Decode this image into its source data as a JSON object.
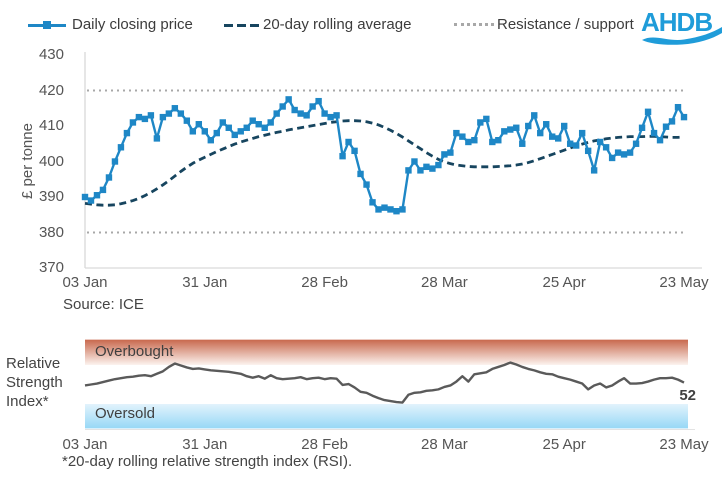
{
  "legend": {
    "items": [
      {
        "label": "Daily closing price",
        "swatch": "line-with-square-marker",
        "color": "#1E87C6"
      },
      {
        "label": "20-day rolling average",
        "swatch": "dashed-line",
        "color": "#17455F"
      },
      {
        "label": "Resistance / support",
        "swatch": "dotted-line",
        "color": "#A8A8A8"
      }
    ]
  },
  "logo": {
    "text": "AHDB",
    "color": "#1F9CD9"
  },
  "source_note": "Source: ICE",
  "footnote": "*20-day rolling relative strength index (RSI).",
  "rsi_labels": {
    "axis_label": "Relative\nStrength\nIndex*",
    "overbought": "Overbought",
    "oversold": "Oversold",
    "end_value": "52"
  },
  "chart_data": [
    {
      "type": "line",
      "title": "Daily closing price vs 20-day rolling average",
      "ylabel": "£ per tonne",
      "ylim": [
        370,
        430
      ],
      "yticks": [
        370,
        380,
        390,
        400,
        410,
        420,
        430
      ],
      "xtick_labels": [
        "03 Jan",
        "31 Jan",
        "28 Feb",
        "28 Mar",
        "25 Apr",
        "23 May"
      ],
      "xtick_indices": [
        0,
        20,
        40,
        60,
        80,
        100
      ],
      "resistance_support_levels": [
        420,
        380
      ],
      "grid": false,
      "legend_position": "top",
      "source": "Source: ICE",
      "series": [
        {
          "name": "Daily closing price",
          "color": "#1E87C6",
          "style": "solid",
          "marker": "square",
          "values": [
            390,
            389,
            390.5,
            392,
            395.5,
            400,
            404,
            408,
            411,
            412.5,
            412,
            413,
            406.5,
            412.5,
            413.5,
            415,
            413.5,
            411.5,
            408.5,
            410.5,
            408.5,
            406,
            408,
            411,
            409.5,
            407.5,
            408.5,
            409.5,
            411.5,
            410.5,
            409.5,
            411,
            413.5,
            415.5,
            417.5,
            414.5,
            413.5,
            413,
            415.5,
            417,
            413.5,
            412.5,
            413,
            401.5,
            405.5,
            403,
            396.5,
            393.5,
            388.5,
            386.5,
            387,
            386.5,
            386,
            386.5,
            397.5,
            400,
            397.5,
            398.5,
            398,
            399,
            402,
            402.5,
            408,
            407,
            405.5,
            406,
            411,
            412,
            405.5,
            406,
            408.5,
            409,
            409.5,
            405,
            410,
            413,
            408,
            410.5,
            407,
            406.5,
            410,
            405,
            404.5,
            408,
            403,
            397.5,
            405.5,
            404,
            401,
            402.5,
            402,
            402.5,
            405,
            409.5,
            414,
            408,
            406,
            409.8,
            411.3,
            415.3,
            412.5
          ]
        },
        {
          "name": "20-day rolling average",
          "color": "#17455F",
          "style": "dashed",
          "marker": "none",
          "values": [
            388.2,
            388,
            387.8,
            387.7,
            387.7,
            387.8,
            388.1,
            388.5,
            389,
            389.6,
            390.4,
            391.3,
            392.3,
            393.4,
            394.6,
            395.9,
            397.2,
            398.4,
            399.5,
            400.4,
            401.2,
            402,
            402.8,
            403.5,
            404.2,
            404.9,
            405.5,
            406,
            406.5,
            407,
            407.4,
            407.8,
            408.2,
            408.5,
            408.9,
            409.2,
            409.5,
            409.8,
            410.1,
            410.4,
            410.7,
            411,
            411.2,
            411.4,
            411.5,
            411.5,
            411.4,
            411.2,
            410.8,
            410.3,
            409.6,
            408.8,
            407.9,
            406.9,
            405.8,
            404.7,
            403.6,
            402.5,
            401.5,
            400.6,
            399.9,
            399.4,
            399,
            398.8,
            398.6,
            398.5,
            398.5,
            398.5,
            398.5,
            398.6,
            398.7,
            398.8,
            399,
            399.3,
            399.7,
            400.2,
            400.8,
            401.4,
            402,
            402.6,
            403.2,
            403.8,
            404.4,
            404.9,
            405.4,
            405.8,
            406.1,
            406.4,
            406.6,
            406.8,
            406.9,
            407,
            407,
            407,
            407.1,
            407.1,
            407,
            406.9,
            406.8,
            406.8,
            406.9
          ]
        }
      ]
    },
    {
      "type": "line",
      "title": "Relative Strength Index (20-day rolling RSI)",
      "ylim": [
        5,
        96
      ],
      "xtick_labels": [
        "03 Jan",
        "31 Jan",
        "28 Feb",
        "28 Mar",
        "25 Apr",
        "23 May"
      ],
      "xtick_indices": [
        0,
        20,
        40,
        60,
        80,
        100
      ],
      "bands": [
        {
          "label": "Overbought",
          "range": [
            70,
            96
          ],
          "color_top": "#C8684D",
          "color_bottom": "#FCF3EF"
        },
        {
          "label": "Oversold",
          "range": [
            5,
            30
          ],
          "color_top": "#E2F3FC",
          "color_bottom": "#97D8F6"
        }
      ],
      "series": [
        {
          "name": "20-day rolling RSI",
          "color": "#5A5A5A",
          "style": "solid",
          "marker": "none",
          "last_value_label": 52,
          "values": [
            49,
            50,
            51,
            52.5,
            54,
            55.5,
            56.5,
            57.5,
            58,
            59,
            59.5,
            58.5,
            61,
            63.5,
            68,
            71.5,
            69.5,
            67.5,
            66,
            66.5,
            65.5,
            64.5,
            64,
            63.5,
            63,
            62,
            61,
            58.5,
            57,
            58.5,
            56,
            59.5,
            56.5,
            55.5,
            56,
            56.5,
            57.5,
            55.5,
            56.5,
            57,
            55.5,
            56.5,
            56,
            49.5,
            50.5,
            47,
            42.5,
            41.5,
            38.5,
            36,
            34,
            33,
            32,
            31.5,
            39.5,
            41.5,
            42,
            43.5,
            44,
            45,
            47.5,
            49,
            53,
            58.5,
            53,
            60.5,
            61.5,
            62.5,
            66,
            68,
            70,
            72.5,
            70.5,
            68,
            66,
            64.5,
            62.5,
            61,
            60.5,
            58,
            56.5,
            55,
            53,
            51,
            45,
            49,
            51,
            47,
            49,
            53,
            56.5,
            51,
            51,
            51.5,
            53,
            55,
            56.5,
            56.5,
            57,
            55,
            52
          ]
        }
      ]
    }
  ]
}
